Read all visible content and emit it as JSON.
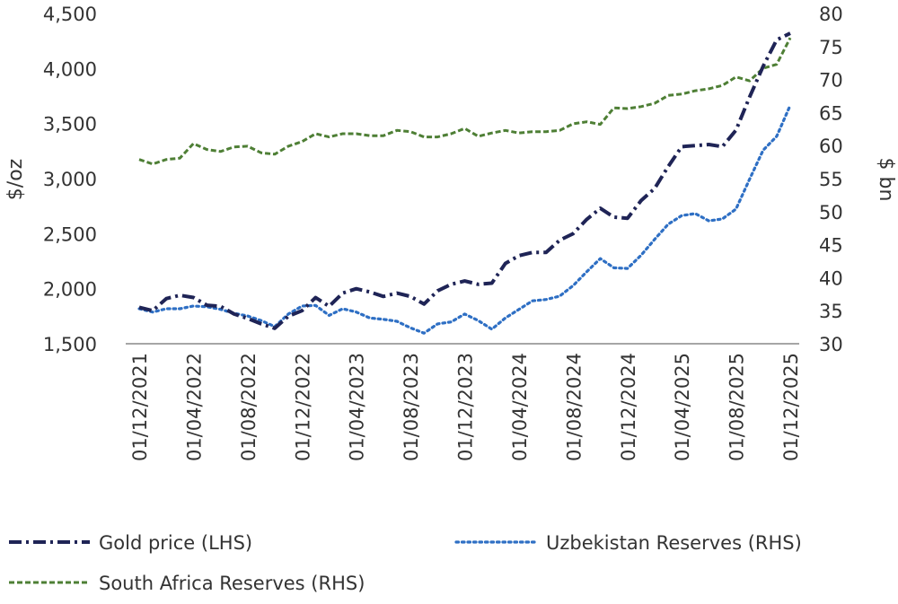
{
  "chart_data": {
    "type": "line",
    "title": "",
    "ylabel_left": "$/oz",
    "ylabel_right": "$ bn",
    "ylim_left": [
      1500,
      4500
    ],
    "ylim_right": [
      30,
      80
    ],
    "yticks_left": [
      "1,500",
      "2,000",
      "2,500",
      "3,000",
      "3,500",
      "4,000",
      "4,500"
    ],
    "yticks_right": [
      "30",
      "35",
      "40",
      "45",
      "50",
      "55",
      "60",
      "65",
      "70",
      "75",
      "80"
    ],
    "xticks": [
      "01/12/2021",
      "01/04/2022",
      "01/08/2022",
      "01/12/2022",
      "01/04/2023",
      "01/08/2023",
      "01/12/2023",
      "01/04/2024",
      "01/08/2024",
      "01/12/2024",
      "01/04/2025",
      "01/08/2025",
      "01/12/2025"
    ],
    "grid": false,
    "legend_position": "bottom",
    "x_start": "2021-12",
    "x_frequency": "monthly",
    "series": [
      {
        "name": "Gold price (LHS)",
        "axis": "left",
        "color": "#1f2456",
        "style": "dash-dot",
        "values": [
          1830,
          1800,
          1910,
          1940,
          1920,
          1850,
          1840,
          1770,
          1730,
          1680,
          1640,
          1750,
          1800,
          1920,
          1840,
          1960,
          2000,
          1970,
          1930,
          1960,
          1930,
          1860,
          1980,
          2040,
          2070,
          2040,
          2050,
          2230,
          2300,
          2330,
          2330,
          2440,
          2500,
          2630,
          2730,
          2650,
          2640,
          2800,
          2910,
          3110,
          3290,
          3300,
          3310,
          3290,
          3440,
          3740,
          4020,
          4260,
          4320
        ]
      },
      {
        "name": "Uzbekistan Reserves (RHS)",
        "axis": "right",
        "color": "#2e6fc4",
        "style": "dotted",
        "values": [
          35.3,
          34.8,
          35.3,
          35.3,
          35.7,
          35.6,
          35.2,
          34.6,
          34.2,
          33.5,
          32.6,
          34.5,
          35.7,
          35.8,
          34.3,
          35.3,
          34.8,
          33.9,
          33.7,
          33.4,
          32.4,
          31.6,
          33.0,
          33.3,
          34.5,
          33.5,
          32.2,
          33.9,
          35.2,
          36.5,
          36.7,
          37.2,
          38.8,
          40.9,
          42.9,
          41.5,
          41.4,
          43.4,
          45.8,
          48.1,
          49.4,
          49.7,
          48.6,
          48.9,
          50.4,
          54.9,
          59.3,
          61.4,
          66.1
        ]
      },
      {
        "name": "South Africa Reserves (RHS)",
        "axis": "right",
        "color": "#4e7f35",
        "style": "dashed",
        "values": [
          57.9,
          57.2,
          57.9,
          58.1,
          60.3,
          59.4,
          59.1,
          59.8,
          59.9,
          58.9,
          58.7,
          59.9,
          60.6,
          61.8,
          61.3,
          61.8,
          61.8,
          61.5,
          61.5,
          62.3,
          62.1,
          61.3,
          61.3,
          61.8,
          62.6,
          61.4,
          61.9,
          62.3,
          61.9,
          62.1,
          62.1,
          62.3,
          63.3,
          63.6,
          63.2,
          65.7,
          65.6,
          65.9,
          66.4,
          67.6,
          67.8,
          68.3,
          68.6,
          69.1,
          70.4,
          69.8,
          71.7,
          72.3,
          76.3
        ]
      }
    ]
  }
}
